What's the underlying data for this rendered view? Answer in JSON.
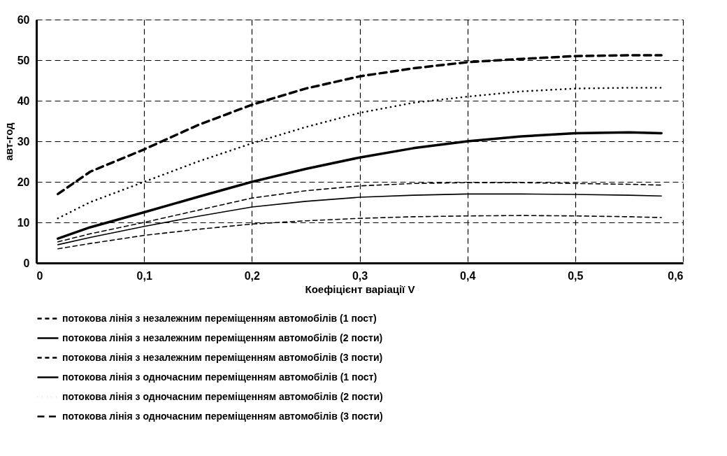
{
  "chart_data": {
    "type": "line",
    "xlabel": "Коефіцієнт варіації V",
    "ylabel": "авт-год",
    "x": [
      0.02,
      0.05,
      0.1,
      0.15,
      0.2,
      0.25,
      0.3,
      0.35,
      0.4,
      0.45,
      0.5,
      0.55,
      0.58
    ],
    "series": [
      {
        "name": "потокова лінія з незалежним переміщенням автомобілів (1 пост)",
        "color": "#000000",
        "line_style": "dashed",
        "values": [
          3.5,
          4.8,
          6.8,
          8.3,
          9.6,
          10.4,
          11,
          11.4,
          11.6,
          11.7,
          11.6,
          11.4,
          11.2
        ]
      },
      {
        "name": "потокова лінія з незалежним переміщенням автомобілів (2 пости)",
        "color": "#000000",
        "line_style": "solid",
        "values": [
          4.5,
          6.3,
          9,
          11.5,
          13.8,
          15.2,
          16.2,
          16.7,
          17,
          17,
          16.9,
          16.7,
          16.5
        ]
      },
      {
        "name": "потокова лінія з незалежним переміщенням автомобілів (3 пости)",
        "color": "#000000",
        "line_style": "dashed",
        "values": [
          5.2,
          7.2,
          10,
          13,
          16,
          17.8,
          19,
          19.6,
          19.8,
          19.8,
          19.6,
          19.4,
          19.2
        ]
      },
      {
        "name": "потокова лінія з одночасним переміщенням автомобілів (1 пост)",
        "color": "#000000",
        "line_style": "solid",
        "values": [
          6,
          8.8,
          12.5,
          16.3,
          20,
          23.2,
          26,
          28.3,
          30,
          31.2,
          32,
          32.2,
          32
        ]
      },
      {
        "name": "потокова лінія з одночасним переміщенням автомобілів (2 пости)",
        "color": "#000000",
        "line_style": "dotted",
        "values": [
          11,
          15,
          20,
          25,
          29.5,
          33.5,
          37,
          39.5,
          41,
          42.3,
          43,
          43.2,
          43.2
        ]
      },
      {
        "name": "потокова лінія з одночасним переміщенням автомобілів (3 пости)",
        "color": "#000000",
        "line_style": "dashed",
        "values": [
          17,
          22.5,
          28,
          34,
          39,
          43,
          46,
          48,
          49.5,
          50.3,
          51,
          51.2,
          51.2
        ]
      }
    ],
    "xlim": [
      0,
      0.6
    ],
    "ylim": [
      0,
      60
    ],
    "xticks": [
      0,
      {
        "value": 0.1,
        "label": "0,1"
      },
      {
        "value": 0.2,
        "label": "0,2"
      },
      {
        "value": 0.3,
        "label": "0,3"
      },
      {
        "value": 0.4,
        "label": "0,4"
      },
      {
        "value": 0.5,
        "label": "0,5"
      },
      {
        "value": 0.6,
        "label": "0,6"
      }
    ],
    "yticks": [
      0,
      10,
      20,
      30,
      40,
      50,
      60
    ],
    "grid": true,
    "legend": "bottom",
    "marker": "none"
  }
}
